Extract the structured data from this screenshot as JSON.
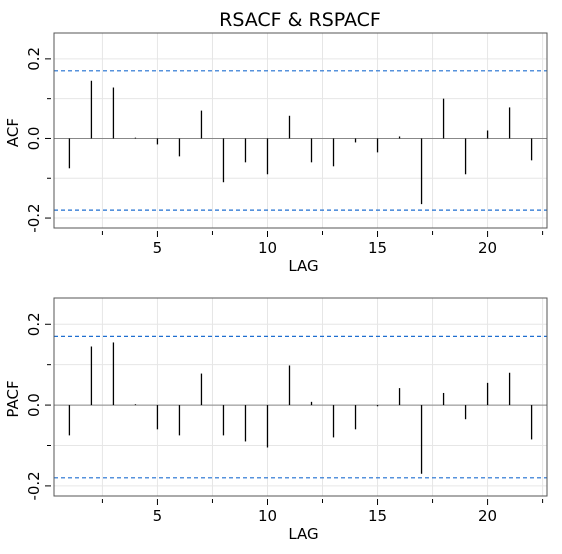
{
  "title": "RSACF & RSPACF",
  "chart_data": [
    {
      "type": "bar",
      "title": "RSACF & RSPACF",
      "xlabel": "LAG",
      "ylabel": "ACF",
      "x": [
        1,
        2,
        3,
        4,
        5,
        6,
        7,
        8,
        9,
        10,
        11,
        12,
        13,
        14,
        15,
        16,
        17,
        18,
        19,
        20,
        21,
        22
      ],
      "values": [
        -0.075,
        0.145,
        0.128,
        0.002,
        -0.015,
        -0.045,
        0.07,
        -0.11,
        -0.06,
        -0.09,
        0.057,
        -0.06,
        -0.07,
        -0.01,
        -0.035,
        0.005,
        -0.165,
        0.1,
        -0.09,
        0.02,
        0.078,
        -0.055
      ],
      "ci_upper": 0.17,
      "ci_lower": -0.18,
      "xlim": [
        0.3,
        22.7
      ],
      "ylim": [
        -0.225,
        0.265
      ],
      "xticks": [
        5,
        10,
        15,
        20
      ],
      "yticks": [
        -0.2,
        0.0,
        0.2
      ],
      "ytick_labels": [
        "-0.2",
        "0.0",
        "0.2"
      ],
      "grid": true,
      "colors": {
        "bar": "#000000",
        "ci": "#1f6fd0",
        "grid": "#e6e6e6",
        "zero": "#888888"
      }
    },
    {
      "type": "bar",
      "title": "",
      "xlabel": "LAG",
      "ylabel": "PACF",
      "x": [
        1,
        2,
        3,
        4,
        5,
        6,
        7,
        8,
        9,
        10,
        11,
        12,
        13,
        14,
        15,
        16,
        17,
        18,
        19,
        20,
        21,
        22
      ],
      "values": [
        -0.075,
        0.145,
        0.155,
        0.002,
        -0.06,
        -0.075,
        0.078,
        -0.075,
        -0.09,
        -0.105,
        0.098,
        0.008,
        -0.08,
        -0.06,
        -0.003,
        0.042,
        -0.17,
        0.03,
        -0.035,
        0.055,
        0.08,
        -0.085
      ],
      "ci_upper": 0.17,
      "ci_lower": -0.18,
      "xlim": [
        0.3,
        22.7
      ],
      "ylim": [
        -0.225,
        0.265
      ],
      "xticks": [
        5,
        10,
        15,
        20
      ],
      "yticks": [
        -0.2,
        0.0,
        0.2
      ],
      "ytick_labels": [
        "-0.2",
        "0.0",
        "0.2"
      ],
      "grid": true,
      "colors": {
        "bar": "#000000",
        "ci": "#1f6fd0",
        "grid": "#e6e6e6",
        "zero": "#888888"
      }
    }
  ]
}
